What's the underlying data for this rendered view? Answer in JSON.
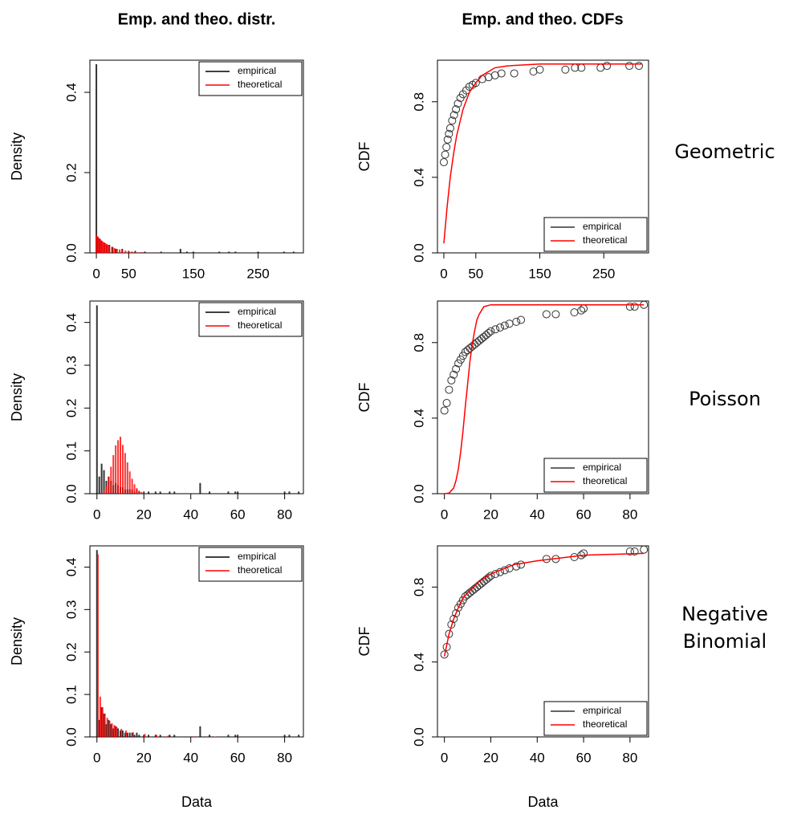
{
  "column_titles": [
    "Emp. and theo. distr.",
    "Emp. and theo. CDFs"
  ],
  "row_labels": [
    [
      "Geometric"
    ],
    [
      "Poisson"
    ],
    [
      "Negative",
      "Binomial"
    ]
  ],
  "chart_data": [
    {
      "type": "bar",
      "y_label": "Density",
      "xlim": [
        -10,
        320
      ],
      "ylim": [
        0,
        0.48
      ],
      "xticks": [
        0,
        50,
        150,
        250
      ],
      "yticks": [
        {
          "value": 0,
          "label": "0.0"
        },
        0.2,
        0.4
      ],
      "legend": "top-right",
      "series": [
        {
          "name": "empirical",
          "color": "#000000",
          "x": [
            0,
            2,
            5,
            8,
            12,
            16,
            20,
            25,
            30,
            40,
            50,
            60,
            75,
            100,
            130,
            140,
            150,
            190,
            205,
            215,
            250,
            290,
            305
          ],
          "values": [
            0.47,
            0.04,
            0.035,
            0.03,
            0.025,
            0.02,
            0.02,
            0.015,
            0.01,
            0.01,
            0.005,
            0.005,
            0.003,
            0.003,
            0.01,
            0.003,
            0.003,
            0.003,
            0.003,
            0.003,
            0.003,
            0.003,
            0.003
          ]
        },
        {
          "name": "theoretical",
          "color": "#ff0000",
          "x": [
            0,
            2,
            4,
            6,
            8,
            10,
            12,
            14,
            16,
            18,
            20,
            24,
            28,
            32,
            36,
            40,
            45,
            50,
            55,
            60,
            70,
            80,
            100,
            150
          ],
          "values": [
            0.045,
            0.041,
            0.037,
            0.034,
            0.031,
            0.028,
            0.026,
            0.024,
            0.022,
            0.02,
            0.018,
            0.015,
            0.012,
            0.01,
            0.0085,
            0.007,
            0.0056,
            0.0045,
            0.0035,
            0.0028,
            0.0018,
            0.0011,
            0.0005,
            0.0001
          ]
        }
      ]
    },
    {
      "type": "scatter",
      "y_label": "CDF",
      "xlim": [
        -10,
        320
      ],
      "ylim": [
        0,
        1.02
      ],
      "xticks": [
        0,
        50,
        150,
        250
      ],
      "yticks": [
        {
          "value": 0,
          "label": "0.0"
        },
        0.4,
        0.8
      ],
      "legend": "bottom-right",
      "series": [
        {
          "name": "empirical",
          "color": "#333333",
          "mark": "points",
          "x": [
            0,
            2,
            4,
            6,
            8,
            10,
            13,
            16,
            19,
            22,
            26,
            30,
            35,
            40,
            45,
            50,
            60,
            70,
            80,
            90,
            110,
            140,
            150,
            190,
            205,
            215,
            245,
            255,
            290,
            305
          ],
          "values": [
            0.48,
            0.52,
            0.56,
            0.6,
            0.63,
            0.66,
            0.7,
            0.73,
            0.76,
            0.79,
            0.82,
            0.84,
            0.86,
            0.88,
            0.89,
            0.9,
            0.92,
            0.93,
            0.94,
            0.95,
            0.95,
            0.96,
            0.97,
            0.97,
            0.98,
            0.98,
            0.98,
            0.99,
            0.99,
            0.99
          ]
        },
        {
          "name": "theoretical",
          "color": "#ff0000",
          "mark": "line",
          "x": [
            0,
            5,
            10,
            15,
            20,
            30,
            40,
            50,
            60,
            80,
            100,
            150,
            310
          ],
          "values": [
            0.05,
            0.24,
            0.4,
            0.52,
            0.62,
            0.76,
            0.85,
            0.9,
            0.94,
            0.98,
            0.99,
            1,
            1
          ]
        }
      ]
    },
    {
      "type": "bar",
      "y_label": "Density",
      "xlim": [
        -3,
        88
      ],
      "ylim": [
        0,
        0.45
      ],
      "xticks": [
        0,
        20,
        40,
        60,
        80
      ],
      "yticks": [
        {
          "value": 0,
          "label": "0.0"
        },
        0.1,
        0.2,
        0.3,
        0.4
      ],
      "legend": "top-right",
      "series": [
        {
          "name": "empirical",
          "color": "#000000",
          "x": [
            0,
            1,
            2,
            3,
            4,
            5,
            6,
            7,
            8,
            9,
            10,
            11,
            12,
            13,
            14,
            15,
            16,
            17,
            18,
            20,
            22,
            25,
            27,
            31,
            33,
            44,
            48,
            56,
            59,
            60,
            80,
            82,
            86
          ],
          "values": [
            0.44,
            0.04,
            0.07,
            0.055,
            0.03,
            0.04,
            0.03,
            0.02,
            0.025,
            0.02,
            0.015,
            0.015,
            0.01,
            0.01,
            0.01,
            0.01,
            0.005,
            0.01,
            0.005,
            0.005,
            0.005,
            0.005,
            0.005,
            0.005,
            0.005,
            0.025,
            0.005,
            0.005,
            0.005,
            0.005,
            0.005,
            0.005,
            0.005
          ]
        },
        {
          "name": "theoretical",
          "color": "#ff0000",
          "x": [
            2,
            3,
            4,
            5,
            6,
            7,
            8,
            9,
            10,
            11,
            12,
            13,
            14,
            15,
            16,
            17,
            18,
            19,
            20
          ],
          "values": [
            0.0023,
            0.0076,
            0.019,
            0.038,
            0.063,
            0.09,
            0.113,
            0.125,
            0.133,
            0.114,
            0.095,
            0.073,
            0.052,
            0.035,
            0.022,
            0.013,
            0.007,
            0.004,
            0.002
          ]
        }
      ]
    },
    {
      "type": "scatter",
      "y_label": "CDF",
      "xlim": [
        -3,
        88
      ],
      "ylim": [
        0,
        1.02
      ],
      "xticks": [
        0,
        20,
        40,
        60,
        80
      ],
      "yticks": [
        {
          "value": 0,
          "label": "0.0"
        },
        0.4,
        0.8
      ],
      "legend": "bottom-right",
      "series": [
        {
          "name": "empirical",
          "color": "#333333",
          "mark": "points",
          "x": [
            0,
            1,
            2,
            3,
            4,
            5,
            6,
            7,
            8,
            9,
            10,
            11,
            12,
            13,
            14,
            15,
            16,
            17,
            18,
            19,
            20,
            22,
            24,
            26,
            28,
            31,
            33,
            44,
            48,
            56,
            59,
            60,
            80,
            82,
            86
          ],
          "values": [
            0.44,
            0.48,
            0.55,
            0.6,
            0.63,
            0.66,
            0.69,
            0.71,
            0.73,
            0.75,
            0.76,
            0.77,
            0.78,
            0.79,
            0.8,
            0.81,
            0.82,
            0.83,
            0.84,
            0.85,
            0.86,
            0.87,
            0.88,
            0.89,
            0.9,
            0.91,
            0.92,
            0.95,
            0.95,
            0.96,
            0.97,
            0.98,
            0.99,
            0.99,
            1.0
          ]
        },
        {
          "name": "theoretical",
          "color": "#ff0000",
          "mark": "line",
          "x": [
            0,
            2,
            4,
            5,
            6,
            7,
            8,
            9,
            10,
            11,
            12,
            13,
            14,
            15,
            17,
            20,
            86
          ],
          "values": [
            0,
            0.003,
            0.03,
            0.07,
            0.13,
            0.22,
            0.33,
            0.46,
            0.58,
            0.7,
            0.79,
            0.86,
            0.92,
            0.95,
            0.99,
            1,
            1
          ]
        }
      ]
    },
    {
      "type": "bar",
      "y_label": "Density",
      "x_label": "Data",
      "xlim": [
        -3,
        88
      ],
      "ylim": [
        0,
        0.45
      ],
      "xticks": [
        0,
        20,
        40,
        60,
        80
      ],
      "yticks": [
        {
          "value": 0,
          "label": "0.0"
        },
        0.1,
        0.2,
        0.3,
        0.4
      ],
      "legend": "top-right",
      "series": [
        {
          "name": "empirical",
          "color": "#000000",
          "x": [
            0,
            1,
            2,
            3,
            4,
            5,
            6,
            7,
            8,
            9,
            10,
            11,
            12,
            13,
            14,
            15,
            16,
            17,
            18,
            20,
            22,
            25,
            27,
            31,
            33,
            44,
            48,
            56,
            59,
            60,
            80,
            82,
            86
          ],
          "values": [
            0.44,
            0.04,
            0.07,
            0.055,
            0.03,
            0.04,
            0.03,
            0.02,
            0.025,
            0.02,
            0.015,
            0.015,
            0.01,
            0.01,
            0.01,
            0.01,
            0.005,
            0.01,
            0.005,
            0.005,
            0.005,
            0.005,
            0.005,
            0.005,
            0.005,
            0.025,
            0.005,
            0.005,
            0.005,
            0.005,
            0.005,
            0.005,
            0.005
          ]
        },
        {
          "name": "theoretical",
          "color": "#ff0000",
          "x": [
            0.4,
            1.4,
            2.4,
            3.4,
            4.4,
            5.4,
            6.4,
            7.4,
            8.4,
            10.4,
            12.4,
            15.4,
            20.4,
            25.4,
            30.4,
            40.4,
            50.4,
            60.4,
            86.4
          ],
          "values": [
            0.43,
            0.095,
            0.07,
            0.055,
            0.045,
            0.038,
            0.032,
            0.028,
            0.024,
            0.019,
            0.015,
            0.011,
            0.007,
            0.005,
            0.003,
            0.0015,
            0.001,
            0.0005,
            0.0002
          ]
        }
      ]
    },
    {
      "type": "scatter",
      "y_label": "CDF",
      "x_label": "Data",
      "xlim": [
        -3,
        88
      ],
      "ylim": [
        0,
        1.02
      ],
      "xticks": [
        0,
        20,
        40,
        60,
        80
      ],
      "yticks": [
        {
          "value": 0,
          "label": "0.0"
        },
        0.4,
        0.8
      ],
      "legend": "bottom-right",
      "series": [
        {
          "name": "empirical",
          "color": "#333333",
          "mark": "points",
          "x": [
            0,
            1,
            2,
            3,
            4,
            5,
            6,
            7,
            8,
            9,
            10,
            11,
            12,
            13,
            14,
            15,
            16,
            17,
            18,
            19,
            20,
            22,
            24,
            26,
            28,
            31,
            33,
            44,
            48,
            56,
            59,
            60,
            80,
            82,
            86
          ],
          "values": [
            0.44,
            0.48,
            0.55,
            0.6,
            0.63,
            0.66,
            0.69,
            0.71,
            0.73,
            0.75,
            0.76,
            0.77,
            0.78,
            0.79,
            0.8,
            0.81,
            0.82,
            0.83,
            0.84,
            0.85,
            0.86,
            0.87,
            0.88,
            0.89,
            0.9,
            0.91,
            0.92,
            0.95,
            0.95,
            0.96,
            0.97,
            0.98,
            0.99,
            0.99,
            1.0
          ]
        },
        {
          "name": "theoretical",
          "color": "#ff0000",
          "mark": "line",
          "x": [
            0,
            2,
            4,
            6,
            8,
            10,
            15,
            20,
            30,
            40,
            60,
            86
          ],
          "values": [
            0.43,
            0.55,
            0.63,
            0.69,
            0.74,
            0.77,
            0.83,
            0.87,
            0.92,
            0.94,
            0.97,
            0.98
          ]
        }
      ]
    }
  ]
}
